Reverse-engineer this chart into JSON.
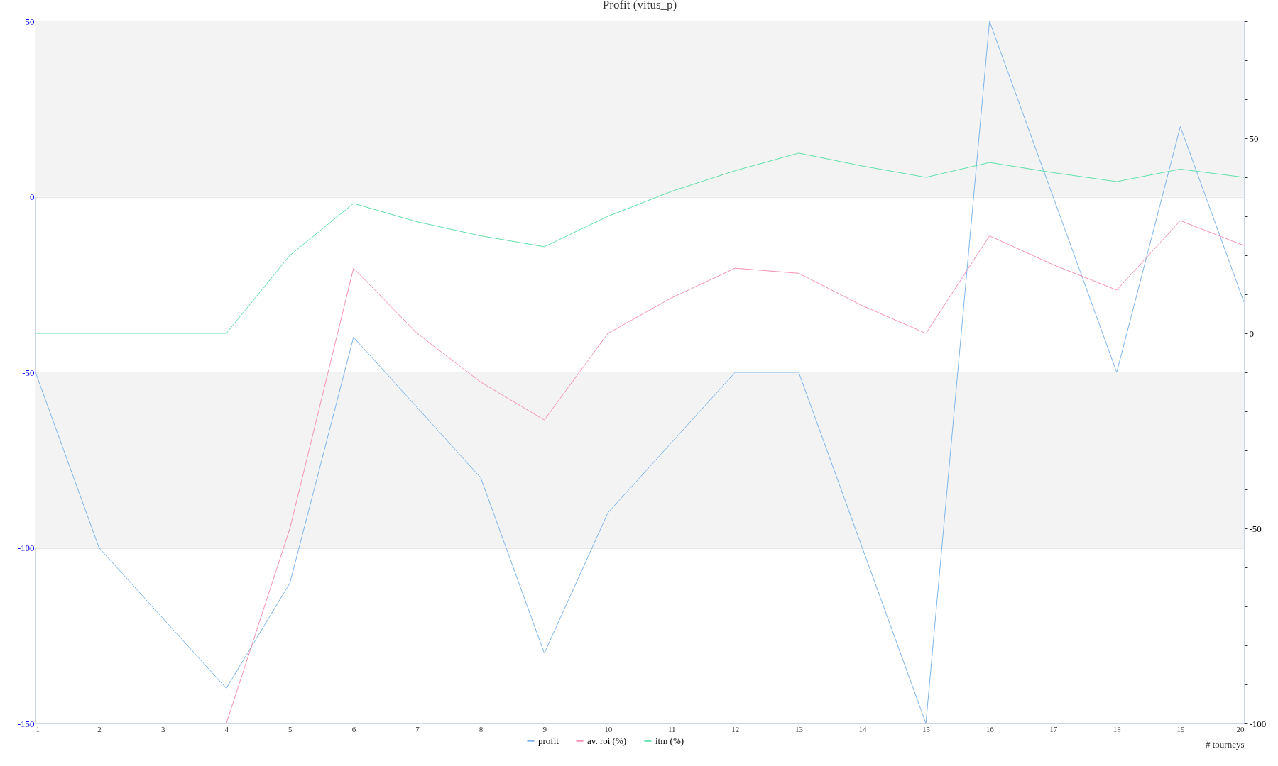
{
  "chart_data": {
    "type": "line",
    "title": "Profit (vitus_p)",
    "xlabel": "# tourneys",
    "x": [
      1,
      2,
      3,
      4,
      5,
      6,
      7,
      8,
      9,
      10,
      11,
      12,
      13,
      14,
      15,
      16,
      17,
      18,
      19,
      20
    ],
    "xlim": [
      1,
      20
    ],
    "xticks": [
      1,
      2,
      3,
      4,
      5,
      6,
      7,
      8,
      9,
      10,
      11,
      12,
      13,
      14,
      15,
      16,
      17,
      18,
      19,
      20
    ],
    "ylim": [
      -150,
      50
    ],
    "yticks": [
      -150,
      -100,
      -50,
      0,
      50
    ],
    "y2lim": [
      -100,
      80
    ],
    "y2ticks": [
      -100,
      {
        "value": -90,
        "label": null
      },
      {
        "value": -80,
        "label": null
      },
      {
        "value": -70,
        "label": null
      },
      {
        "value": -60,
        "label": null
      },
      -50,
      {
        "value": -40,
        "label": null
      },
      {
        "value": -30,
        "label": null
      },
      {
        "value": -20,
        "label": null
      },
      {
        "value": -10,
        "label": null
      },
      0,
      {
        "value": 10,
        "label": null
      },
      {
        "value": 20,
        "label": null
      },
      {
        "value": 30,
        "label": null
      },
      {
        "value": 40,
        "label": null
      },
      50,
      {
        "value": 60,
        "label": null
      },
      {
        "value": 70,
        "label": null
      },
      {
        "value": 80,
        "label": null
      }
    ],
    "series": [
      {
        "name": "profit",
        "color": "#7cb5ec",
        "values": [
          -50,
          -100,
          -120,
          -140,
          -110,
          -40,
          -60,
          -80,
          -130,
          -90,
          -70,
          -50,
          -50,
          -100,
          -150,
          50,
          0,
          -50,
          20,
          -30
        ]
      },
      {
        "name": "av. roi (%)",
        "color": "#f78fb8",
        "axis": "y2",
        "values": [
          null,
          null,
          null,
          -100,
          -50,
          16.7,
          0,
          -12.5,
          -22.2,
          0,
          9.1,
          16.7,
          15.4,
          7.1,
          0,
          25,
          17.6,
          11.1,
          28.9,
          22.5
        ]
      },
      {
        "name": "itm (%)",
        "color": "#5fe0a8",
        "axis": "y2",
        "values": [
          0,
          0,
          0,
          0,
          20,
          33.3,
          28.6,
          25,
          22.2,
          30,
          36.4,
          41.7,
          46.2,
          42.9,
          40,
          43.8,
          41.2,
          38.9,
          42.1,
          40
        ]
      }
    ],
    "bands": [
      {
        "axis": "y",
        "from": 0,
        "to": 50,
        "color": "#f3f3f3"
      },
      {
        "axis": "y",
        "from": -100,
        "to": -50,
        "color": "#f3f3f3"
      }
    ],
    "grid": "y",
    "legend": "bottom",
    "marker": "none",
    "line_style": "solid"
  }
}
